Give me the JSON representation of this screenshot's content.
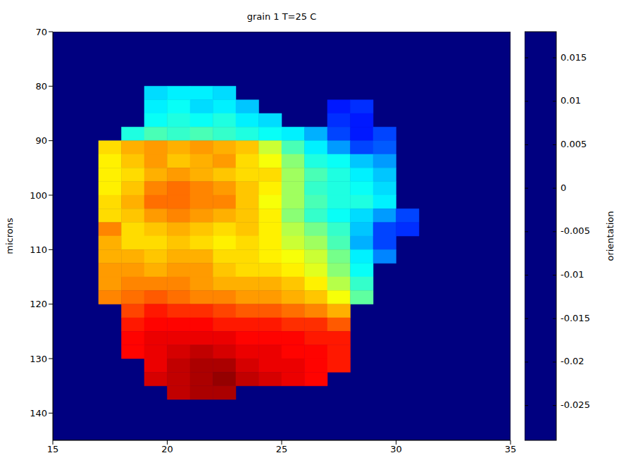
{
  "chart_data": {
    "type": "heatmap",
    "title": "grain 1 T=25 C",
    "y_label": "microns",
    "xlim": [
      15,
      35
    ],
    "ylim": [
      70,
      145
    ],
    "xticks": [
      15,
      20,
      25,
      30,
      35
    ],
    "yticks": [
      70,
      80,
      90,
      100,
      110,
      120,
      130,
      140
    ],
    "x": [
      17.5,
      18.5,
      19.5,
      20.5,
      21.5,
      22.5,
      23.5,
      24.5,
      25.5,
      26.5,
      27.5,
      28.5,
      29.5,
      30.5
    ],
    "y": [
      81.25,
      83.75,
      86.25,
      88.75,
      91.25,
      93.75,
      96.25,
      98.75,
      101.25,
      103.75,
      106.25,
      108.75,
      111.25,
      113.75,
      116.25,
      118.75,
      121.25,
      123.75,
      126.25,
      128.75,
      131.25,
      133.75,
      136.25
    ],
    "cells": [
      [
        null,
        null,
        -0.013,
        -0.012,
        -0.012,
        -0.013,
        null,
        null,
        null,
        null,
        null,
        null,
        null,
        null
      ],
      [
        null,
        null,
        -0.012,
        -0.011,
        -0.013,
        -0.012,
        -0.014,
        null,
        null,
        null,
        -0.022,
        -0.021,
        null,
        null
      ],
      [
        null,
        null,
        -0.011,
        -0.01,
        -0.011,
        -0.01,
        -0.012,
        -0.013,
        null,
        null,
        -0.021,
        -0.022,
        null,
        null
      ],
      [
        null,
        -0.01,
        -0.008,
        -0.009,
        -0.008,
        -0.009,
        -0.01,
        -0.011,
        -0.012,
        -0.015,
        -0.02,
        -0.022,
        -0.02,
        null
      ],
      [
        0.002,
        0.004,
        0.005,
        0.004,
        0.005,
        0.004,
        0.003,
        -0.002,
        -0.008,
        -0.012,
        -0.016,
        -0.02,
        -0.019,
        null
      ],
      [
        0.001,
        0.003,
        0.005,
        0.003,
        0.004,
        0.005,
        0.002,
        0,
        -0.005,
        -0.01,
        -0.011,
        -0.014,
        -0.016,
        null
      ],
      [
        0.001,
        0.002,
        0.004,
        0.005,
        0.004,
        0.003,
        0.002,
        0.002,
        -0.004,
        -0.008,
        -0.01,
        -0.012,
        -0.014,
        null
      ],
      [
        0.001,
        0.003,
        0.006,
        0.007,
        0.006,
        0.005,
        0.003,
        0.001,
        -0.004,
        -0.009,
        -0.01,
        -0.011,
        -0.013,
        null
      ],
      [
        0.002,
        0.004,
        0.007,
        0.007,
        0.006,
        0.006,
        0.003,
        0,
        -0.004,
        -0.008,
        -0.01,
        -0.01,
        -0.012,
        null
      ],
      [
        0.002,
        0.003,
        0.005,
        0.006,
        0.005,
        0.004,
        0.003,
        0.001,
        -0.005,
        -0.009,
        -0.011,
        -0.013,
        -0.016,
        -0.02
      ],
      [
        0.006,
        0.002,
        0.003,
        0.004,
        0.003,
        0.002,
        0.003,
        0.001,
        -0.003,
        -0.006,
        -0.009,
        -0.014,
        -0.02,
        -0.021
      ],
      [
        0.004,
        0.002,
        0.002,
        0.003,
        0.002,
        0.001,
        0.002,
        0.001,
        -0.002,
        -0.004,
        -0.008,
        -0.015,
        -0.02,
        null
      ],
      [
        0.004,
        0.004,
        0.003,
        0.004,
        0.004,
        0.002,
        0.002,
        0.001,
        0,
        -0.002,
        -0.006,
        -0.012,
        -0.017,
        null
      ],
      [
        0.005,
        0.005,
        0.004,
        0.005,
        0.005,
        0.003,
        0.002,
        0.002,
        0.001,
        -0.001,
        -0.005,
        -0.011,
        null,
        null
      ],
      [
        0.005,
        0.006,
        0.006,
        0.006,
        0.005,
        0.004,
        0.004,
        0.004,
        0.003,
        0.001,
        -0.003,
        -0.009,
        null,
        null
      ],
      [
        0.006,
        0.007,
        0.008,
        0.007,
        0.006,
        0.006,
        0.005,
        0.005,
        0.004,
        0.003,
        0,
        -0.007,
        null,
        null
      ],
      [
        null,
        0.009,
        0.011,
        0.01,
        0.01,
        0.009,
        0.008,
        0.008,
        0.007,
        0.006,
        0.004,
        null,
        null,
        null
      ],
      [
        null,
        0.011,
        0.012,
        0.012,
        0.012,
        0.011,
        0.011,
        0.011,
        0.01,
        0.01,
        0.008,
        null,
        null,
        null
      ],
      [
        null,
        0.012,
        0.013,
        0.013,
        0.013,
        0.013,
        0.012,
        0.012,
        0.012,
        0.011,
        0.011,
        null,
        null,
        null
      ],
      [
        null,
        0.012,
        0.013,
        0.014,
        0.015,
        0.014,
        0.013,
        0.013,
        0.012,
        0.012,
        0.011,
        null,
        null,
        null
      ],
      [
        null,
        null,
        0.013,
        0.015,
        0.016,
        0.016,
        0.014,
        0.013,
        0.013,
        0.012,
        0.011,
        null,
        null,
        null
      ],
      [
        null,
        null,
        0.014,
        0.015,
        0.016,
        0.017,
        0.015,
        0.014,
        0.013,
        0.012,
        null,
        null,
        null,
        null
      ],
      [
        null,
        null,
        null,
        0.015,
        0.016,
        0.016,
        null,
        null,
        null,
        null,
        null,
        null,
        null,
        null
      ]
    ],
    "colorbar": {
      "label": "orientation",
      "range": [
        -0.029,
        0.018
      ],
      "ticks": [
        -0.025,
        -0.02,
        -0.015,
        -0.01,
        -0.005,
        0,
        0.005,
        0.01,
        0.015
      ]
    }
  }
}
